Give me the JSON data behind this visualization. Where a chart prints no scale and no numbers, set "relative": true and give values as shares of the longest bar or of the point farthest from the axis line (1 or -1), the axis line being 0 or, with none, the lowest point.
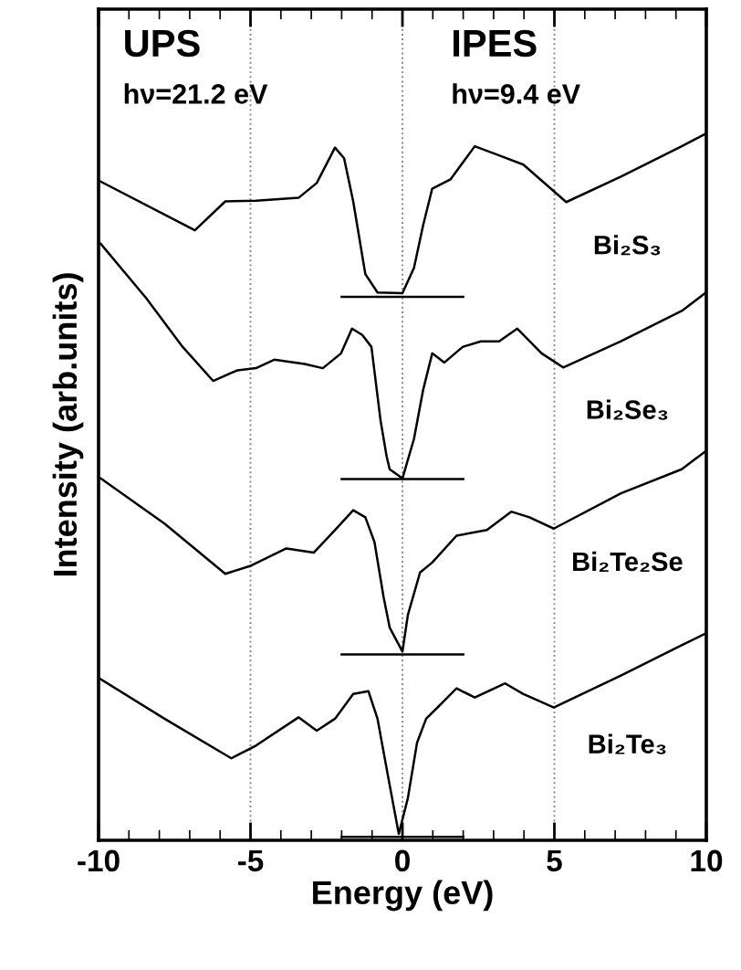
{
  "chart_data": {
    "type": "line",
    "relative": true,
    "xlabel": "Energy (eV)",
    "ylabel": "Intensity (arb.units)",
    "xlim": [
      -10,
      10
    ],
    "xticks": [
      -10,
      {
        "value": -9,
        "label": null
      },
      {
        "value": -8,
        "label": null
      },
      {
        "value": -7,
        "label": null
      },
      {
        "value": -6,
        "label": null
      },
      -5,
      {
        "value": -4,
        "label": null
      },
      {
        "value": -3,
        "label": null
      },
      {
        "value": -2,
        "label": null
      },
      {
        "value": -1,
        "label": null
      },
      0,
      {
        "value": 1,
        "label": null
      },
      {
        "value": 2,
        "label": null
      },
      {
        "value": 3,
        "label": null
      },
      {
        "value": 4,
        "label": null
      },
      5,
      {
        "value": 6,
        "label": null
      },
      {
        "value": 7,
        "label": null
      },
      {
        "value": 8,
        "label": null
      },
      {
        "value": 9,
        "label": null
      },
      10
    ],
    "tick_labels": "x",
    "legend": false,
    "marker": "none",
    "line_style": "solid",
    "grid": false,
    "annotations": [
      "UPS",
      "hν=21.2 eV",
      "IPES",
      "hν=9.4 eV"
    ],
    "ref_lines": [
      {
        "axis": "x",
        "value": -5,
        "line_style": "dotted",
        "color": "#888888"
      },
      {
        "axis": "x",
        "value": 0,
        "line_style": "dotted",
        "color": "#888888"
      },
      {
        "axis": "x",
        "value": 5,
        "line_style": "dotted",
        "color": "#888888"
      }
    ],
    "series": [
      {
        "name": "Bi₂S₃",
        "color": "#000000",
        "x": [
          -9.93,
          -6.83,
          -5.83,
          -4.82,
          -3.42,
          -2.82,
          -2.22,
          -1.92,
          -1.62,
          -1.22,
          -0.82,
          0,
          0.38,
          0.68,
          0.98,
          1.58,
          2.38,
          3.18,
          3.98,
          5.39,
          7.19,
          9.19,
          9.99
        ],
        "values": [
          0.932,
          0.863,
          0.904,
          0.905,
          0.909,
          0.93,
          0.98,
          0.965,
          0.904,
          0.801,
          0.775,
          0.774,
          0.81,
          0.87,
          0.922,
          0.935,
          0.982,
          0.969,
          0.956,
          0.903,
          0.939,
          0.982,
          1.0
        ]
      },
      {
        "color": "#000000",
        "x": [
          -2,
          2
        ],
        "values": [
          0.769,
          0.769
        ]
      },
      {
        "name": "Bi₂Se₃",
        "color": "#000000",
        "x": [
          -9.93,
          -8.43,
          -7.23,
          -6.23,
          -5.43,
          -4.82,
          -4.22,
          -3.22,
          -2.62,
          -2.02,
          -1.66,
          -1.32,
          -1.02,
          -0.72,
          -0.52,
          -0.42,
          0,
          0.38,
          0.68,
          0.98,
          1.38,
          1.98,
          2.58,
          3.18,
          3.78,
          4.58,
          5.29,
          7.19,
          9.19,
          9.99
        ],
        "values": [
          0.844,
          0.767,
          0.698,
          0.65,
          0.665,
          0.668,
          0.68,
          0.674,
          0.668,
          0.689,
          0.724,
          0.715,
          0.698,
          0.594,
          0.543,
          0.525,
          0.512,
          0.568,
          0.637,
          0.689,
          0.676,
          0.698,
          0.706,
          0.706,
          0.724,
          0.689,
          0.669,
          0.706,
          0.749,
          0.775
        ]
      },
      {
        "color": "#000000",
        "x": [
          -2,
          2
        ],
        "values": [
          0.511,
          0.511
        ]
      },
      {
        "name": "Bi₂Te₂Se",
        "color": "#000000",
        "x": [
          -9.93,
          -7.83,
          -5.83,
          -5.02,
          -3.82,
          -2.92,
          -2.22,
          -1.62,
          -1.22,
          -0.92,
          -0.62,
          -0.42,
          0,
          0.18,
          0.58,
          0.98,
          1.78,
          2.78,
          3.58,
          4.18,
          4.98,
          7.19,
          9.19,
          9.99
        ],
        "values": [
          0.512,
          0.448,
          0.377,
          0.388,
          0.413,
          0.407,
          0.439,
          0.467,
          0.457,
          0.422,
          0.344,
          0.301,
          0.267,
          0.319,
          0.379,
          0.393,
          0.431,
          0.439,
          0.465,
          0.457,
          0.441,
          0.491,
          0.525,
          0.551
        ]
      },
      {
        "color": "#000000",
        "x": [
          -2,
          2
        ],
        "values": [
          0.263,
          0.263
        ]
      },
      {
        "name": "Bi₂Te₃",
        "color": "#000000",
        "x": [
          -9.93,
          -7.83,
          -5.63,
          -4.82,
          -3.42,
          -2.82,
          -2.22,
          -1.62,
          -1.12,
          -0.82,
          -0.42,
          -0.12,
          0.18,
          0.48,
          0.78,
          1.18,
          1.78,
          2.38,
          3.38,
          3.98,
          4.98,
          7.19,
          9.19,
          9.99
        ],
        "values": [
          0.228,
          0.172,
          0.116,
          0.134,
          0.174,
          0.155,
          0.172,
          0.207,
          0.211,
          0.172,
          0.078,
          0.009,
          0.06,
          0.138,
          0.172,
          0.189,
          0.215,
          0.202,
          0.222,
          0.207,
          0.188,
          0.233,
          0.276,
          0.293
        ]
      },
      {
        "color": "#000000",
        "x": [
          -2,
          2
        ],
        "values": [
          0.005,
          0.005
        ]
      }
    ]
  }
}
